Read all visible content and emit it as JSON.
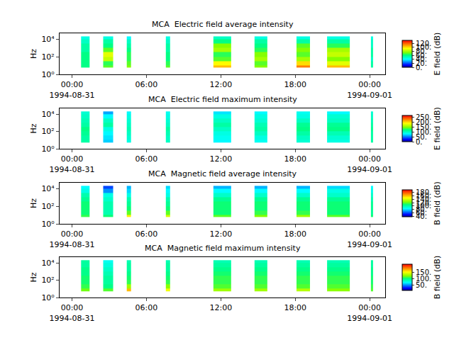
{
  "chart_data": [
    {
      "type": "heatmap",
      "title": "MCA  Electric field average intensity",
      "y_label": "Hz",
      "colorbar_label": "E field (dB)",
      "log": "y",
      "xlim": [
        "1994-08-30 23:00",
        "1994-09-01 01:15"
      ],
      "xticks": [
        {
          "value": "1994-08-31 00:00",
          "label": "00:00\n1994-08-31"
        },
        {
          "value": "1994-08-31 06:00",
          "label": "06:00"
        },
        {
          "value": "1994-08-31 12:00",
          "label": "12:00"
        },
        {
          "value": "1994-08-31 18:00",
          "label": "18:00"
        },
        {
          "value": "1994-09-01 00:00",
          "label": "00:00\n1994-09-01"
        }
      ],
      "ylim": [
        1,
        45000
      ],
      "yticks": [
        {
          "value": 1,
          "label": "10⁰"
        },
        {
          "value": 100,
          "label": "10²"
        },
        {
          "value": 10000,
          "label": "10⁴"
        }
      ],
      "y_edges": [
        5.6,
        10,
        31.6,
        100,
        316,
        1000,
        3160,
        10000,
        20000
      ],
      "clim": [
        0,
        135
      ],
      "cticks": [
        {
          "value": 0,
          "label": "0."
        },
        {
          "value": 20,
          "label": "20."
        },
        {
          "value": 40,
          "label": "40."
        },
        {
          "value": 60,
          "label": "60."
        },
        {
          "value": 80,
          "label": "80."
        },
        {
          "value": 100,
          "label": "100."
        },
        {
          "value": 120,
          "label": "120."
        }
      ],
      "segments": [
        {
          "x": [
            "1994-08-31 00:44",
            "1994-08-31 01:26"
          ],
          "values": [
            60,
            60,
            60,
            60,
            55,
            55,
            50,
            45
          ]
        },
        {
          "x": [
            "1994-08-31 02:31",
            "1994-08-31 03:19"
          ],
          "values": [
            70,
            65,
            85,
            90,
            70,
            60,
            55,
            45
          ]
        },
        {
          "x": [
            "1994-08-31 04:25",
            "1994-08-31 04:45"
          ],
          "values": [
            75,
            70,
            65,
            65,
            60,
            55,
            50,
            40
          ]
        },
        {
          "x": [
            "1994-08-31 07:34",
            "1994-08-31 07:54"
          ],
          "values": [
            70,
            65,
            60,
            60,
            55,
            55,
            50,
            45
          ]
        },
        {
          "x": [
            "1994-08-31 11:24",
            "1994-08-31 12:50"
          ],
          "values": [
            105,
            95,
            70,
            65,
            80,
            75,
            60,
            50
          ]
        },
        {
          "x": [
            "1994-08-31 14:43",
            "1994-08-31 15:45"
          ],
          "values": [
            75,
            70,
            80,
            75,
            65,
            60,
            55,
            45
          ]
        },
        {
          "x": [
            "1994-08-31 18:06",
            "1994-08-31 19:11"
          ],
          "values": [
            115,
            100,
            80,
            70,
            75,
            70,
            55,
            45
          ]
        },
        {
          "x": [
            "1994-08-31 20:34",
            "1994-08-31 22:23"
          ],
          "values": [
            105,
            90,
            75,
            85,
            80,
            65,
            55,
            45
          ]
        },
        {
          "x": [
            "1994-09-01 00:06",
            "1994-09-01 00:17"
          ],
          "values": [
            55,
            55,
            50,
            55,
            55,
            50,
            50,
            45
          ]
        }
      ]
    },
    {
      "type": "heatmap",
      "title": "MCA  Electric field maximum intensity",
      "y_label": "Hz",
      "colorbar_label": "E field (dB)",
      "log": "y",
      "xlim": [
        "1994-08-30 23:00",
        "1994-09-01 01:15"
      ],
      "xticks": [
        {
          "value": "1994-08-31 00:00",
          "label": "00:00\n1994-08-31"
        },
        {
          "value": "1994-08-31 06:00",
          "label": "06:00"
        },
        {
          "value": "1994-08-31 12:00",
          "label": "12:00"
        },
        {
          "value": "1994-08-31 18:00",
          "label": "18:00"
        },
        {
          "value": "1994-09-01 00:00",
          "label": "00:00\n1994-09-01"
        }
      ],
      "ylim": [
        1,
        45000
      ],
      "yticks": [
        {
          "value": 1,
          "label": "10⁰"
        },
        {
          "value": 100,
          "label": "10²"
        },
        {
          "value": 10000,
          "label": "10⁴"
        }
      ],
      "y_edges": [
        5.6,
        10,
        31.6,
        100,
        316,
        1000,
        3160,
        10000,
        20000
      ],
      "clim": [
        0,
        270
      ],
      "cticks": [
        {
          "value": 0,
          "label": "0."
        },
        {
          "value": 50,
          "label": "50."
        },
        {
          "value": 100,
          "label": "100."
        },
        {
          "value": 150,
          "label": "150."
        },
        {
          "value": 200,
          "label": "200."
        },
        {
          "value": 250,
          "label": "250."
        }
      ],
      "segments": [
        {
          "x": [
            "1994-08-31 00:44",
            "1994-08-31 01:26"
          ],
          "values": [
            110,
            110,
            115,
            120,
            110,
            105,
            100,
            95
          ]
        },
        {
          "x": [
            "1994-08-31 02:31",
            "1994-08-31 03:19"
          ],
          "values": [
            70,
            75,
            80,
            90,
            110,
            100,
            80,
            60
          ]
        },
        {
          "x": [
            "1994-08-31 04:25",
            "1994-08-31 04:45"
          ],
          "values": [
            90,
            95,
            100,
            105,
            100,
            95,
            90,
            80
          ]
        },
        {
          "x": [
            "1994-08-31 07:34",
            "1994-08-31 07:54"
          ],
          "values": [
            100,
            100,
            105,
            110,
            100,
            95,
            90,
            85
          ]
        },
        {
          "x": [
            "1994-08-31 11:24",
            "1994-08-31 12:50"
          ],
          "values": [
            80,
            85,
            90,
            100,
            110,
            100,
            90,
            75
          ]
        },
        {
          "x": [
            "1994-08-31 14:43",
            "1994-08-31 15:45"
          ],
          "values": [
            85,
            90,
            100,
            110,
            105,
            95,
            90,
            80
          ]
        },
        {
          "x": [
            "1994-08-31 18:06",
            "1994-08-31 19:11"
          ],
          "values": [
            95,
            100,
            110,
            120,
            115,
            100,
            90,
            85
          ]
        },
        {
          "x": [
            "1994-08-31 20:34",
            "1994-08-31 22:23"
          ],
          "values": [
            90,
            95,
            105,
            120,
            115,
            100,
            95,
            80
          ]
        },
        {
          "x": [
            "1994-09-01 00:06",
            "1994-09-01 00:17"
          ],
          "values": [
            110,
            110,
            110,
            115,
            110,
            105,
            100,
            95
          ]
        }
      ]
    },
    {
      "type": "heatmap",
      "title": "MCA  Magnetic field average intensity",
      "y_label": "Hz",
      "colorbar_label": "B field (dB)",
      "log": "y",
      "xlim": [
        "1994-08-30 23:00",
        "1994-09-01 01:15"
      ],
      "xticks": [
        {
          "value": "1994-08-31 00:00",
          "label": "00:00\n1994-08-31"
        },
        {
          "value": "1994-08-31 06:00",
          "label": "06:00"
        },
        {
          "value": "1994-08-31 12:00",
          "label": "12:00"
        },
        {
          "value": "1994-08-31 18:00",
          "label": "18:00"
        },
        {
          "value": "1994-09-01 00:00",
          "label": "00:00\n1994-09-01"
        }
      ],
      "ylim": [
        1,
        45000
      ],
      "yticks": [
        {
          "value": 1,
          "label": "10⁰"
        },
        {
          "value": 100,
          "label": "10²"
        },
        {
          "value": 10000,
          "label": "10⁴"
        }
      ],
      "y_edges": [
        5.6,
        10,
        31.6,
        100,
        316,
        1000,
        3160,
        10000,
        20000
      ],
      "clim": [
        38,
        195
      ],
      "cticks": [
        {
          "value": 40,
          "label": "40."
        },
        {
          "value": 60,
          "label": "60."
        },
        {
          "value": 80,
          "label": "80."
        },
        {
          "value": 100,
          "label": "100."
        },
        {
          "value": 120,
          "label": "120."
        },
        {
          "value": 140,
          "label": "140."
        },
        {
          "value": 160,
          "label": "160."
        },
        {
          "value": 180,
          "label": "180."
        }
      ],
      "segments": [
        {
          "x": [
            "1994-08-31 00:44",
            "1994-08-31 01:26"
          ],
          "values": [
            115,
            110,
            110,
            110,
            105,
            100,
            90,
            85
          ]
        },
        {
          "x": [
            "1994-08-31 02:31",
            "1994-08-31 03:19"
          ],
          "values": [
            110,
            100,
            100,
            100,
            95,
            90,
            70,
            60
          ]
        },
        {
          "x": [
            "1994-08-31 04:25",
            "1994-08-31 04:45"
          ],
          "values": [
            150,
            120,
            110,
            105,
            100,
            90,
            80,
            75
          ]
        },
        {
          "x": [
            "1994-08-31 07:34",
            "1994-08-31 07:54"
          ],
          "values": [
            140,
            120,
            110,
            105,
            100,
            90,
            85,
            80
          ]
        },
        {
          "x": [
            "1994-08-31 11:24",
            "1994-08-31 12:50"
          ],
          "values": [
            120,
            110,
            110,
            110,
            105,
            95,
            85,
            75
          ]
        },
        {
          "x": [
            "1994-08-31 14:43",
            "1994-08-31 15:45"
          ],
          "values": [
            125,
            115,
            110,
            110,
            105,
            95,
            85,
            75
          ]
        },
        {
          "x": [
            "1994-08-31 18:06",
            "1994-08-31 19:11"
          ],
          "values": [
            130,
            115,
            110,
            110,
            105,
            95,
            85,
            75
          ]
        },
        {
          "x": [
            "1994-08-31 20:34",
            "1994-08-31 22:23"
          ],
          "values": [
            120,
            110,
            110,
            110,
            105,
            95,
            90,
            80
          ]
        },
        {
          "x": [
            "1994-09-01 00:06",
            "1994-09-01 00:17"
          ],
          "values": [
            110,
            105,
            105,
            105,
            100,
            95,
            90,
            85
          ]
        }
      ]
    },
    {
      "type": "heatmap",
      "title": "MCA  Magnetic field maximum intensity",
      "y_label": "Hz",
      "colorbar_label": "B field (dB)",
      "log": "y",
      "xlim": [
        "1994-08-30 23:00",
        "1994-09-01 01:15"
      ],
      "xticks": [
        {
          "value": "1994-08-31 00:00",
          "label": "00:00\n1994-08-31"
        },
        {
          "value": "1994-08-31 06:00",
          "label": "06:00"
        },
        {
          "value": "1994-08-31 12:00",
          "label": "12:00"
        },
        {
          "value": "1994-08-31 18:00",
          "label": "18:00"
        },
        {
          "value": "1994-09-01 00:00",
          "label": "00:00\n1994-09-01"
        }
      ],
      "ylim": [
        1,
        45000
      ],
      "yticks": [
        {
          "value": 1,
          "label": "10⁰"
        },
        {
          "value": 100,
          "label": "10²"
        },
        {
          "value": 10000,
          "label": "10⁴"
        }
      ],
      "y_edges": [
        5.6,
        10,
        31.6,
        100,
        316,
        1000,
        3160,
        10000,
        20000
      ],
      "clim": [
        10,
        215
      ],
      "cticks": [
        {
          "value": 50,
          "label": "50."
        },
        {
          "value": 100,
          "label": "100."
        },
        {
          "value": 150,
          "label": "150."
        }
      ],
      "segments": [
        {
          "x": [
            "1994-08-31 00:44",
            "1994-08-31 01:26"
          ],
          "values": [
            120,
            110,
            105,
            105,
            100,
            100,
            95,
            95
          ]
        },
        {
          "x": [
            "1994-08-31 02:31",
            "1994-08-31 03:19"
          ],
          "values": [
            115,
            100,
            95,
            95,
            90,
            85,
            80,
            75
          ]
        },
        {
          "x": [
            "1994-08-31 04:25",
            "1994-08-31 04:45"
          ],
          "values": [
            170,
            130,
            110,
            105,
            100,
            95,
            95,
            90
          ]
        },
        {
          "x": [
            "1994-08-31 07:34",
            "1994-08-31 07:54"
          ],
          "values": [
            150,
            125,
            110,
            105,
            100,
            95,
            95,
            90
          ]
        },
        {
          "x": [
            "1994-08-31 11:24",
            "1994-08-31 12:50"
          ],
          "values": [
            130,
            115,
            110,
            110,
            105,
            100,
            95,
            90
          ]
        },
        {
          "x": [
            "1994-08-31 14:43",
            "1994-08-31 15:45"
          ],
          "values": [
            130,
            115,
            110,
            110,
            105,
            100,
            95,
            90
          ]
        },
        {
          "x": [
            "1994-08-31 18:06",
            "1994-08-31 19:11"
          ],
          "values": [
            135,
            115,
            110,
            110,
            105,
            100,
            95,
            90
          ]
        },
        {
          "x": [
            "1994-08-31 20:34",
            "1994-08-31 22:23"
          ],
          "values": [
            125,
            115,
            110,
            110,
            105,
            100,
            95,
            90
          ]
        },
        {
          "x": [
            "1994-09-01 00:06",
            "1994-09-01 00:17"
          ],
          "values": [
            115,
            110,
            105,
            105,
            100,
            100,
            95,
            95
          ]
        }
      ]
    }
  ]
}
